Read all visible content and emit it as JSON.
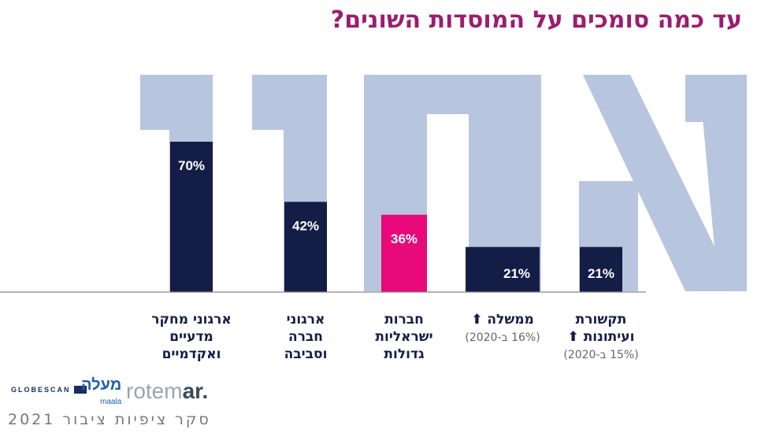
{
  "title": "עד כמה סומכים על המוסדות השונים?",
  "background_word": "אמון",
  "footer": "סקר ציפיות ציבור 2021",
  "logos": {
    "globescan": "GLOBESCAN",
    "maala": "מעלה",
    "maala_sub": "maala",
    "rotemar_light": "rotem",
    "rotemar_dark": "ar."
  },
  "colors": {
    "title": "#9b1d6f",
    "bar": "#141d45",
    "highlight": "#e8097b",
    "ghost": "#b7c5de",
    "label": "#141d45",
    "note": "#666666"
  },
  "chart_data": {
    "type": "bar",
    "categories": [
      "ארגוני מחקר מדעיים ואקדמיים",
      "ארגוני חברה וסביבה",
      "חברות ישראליות גדולות",
      "ממשלה",
      "תקשורת ועיתונות"
    ],
    "category_lines": [
      [
        "ארגוני מחקר",
        "מדעיים",
        "ואקדמיים"
      ],
      [
        "ארגוני",
        "חברה",
        "וסביבה"
      ],
      [
        "חברות",
        "ישראליות",
        "גדולות"
      ],
      [
        "ממשלה"
      ],
      [
        "תקשורת",
        "ועיתונות"
      ]
    ],
    "values": [
      70,
      42,
      36,
      21,
      21
    ],
    "value_labels": [
      "70%",
      "42%",
      "36%",
      "21%",
      "21%"
    ],
    "highlight_index": 2,
    "up_arrow": [
      false,
      false,
      false,
      true,
      true
    ],
    "notes": [
      "",
      "",
      "",
      "(16% ב-2020)",
      "(15% ב-2020)"
    ],
    "ylim": [
      0,
      100
    ]
  }
}
